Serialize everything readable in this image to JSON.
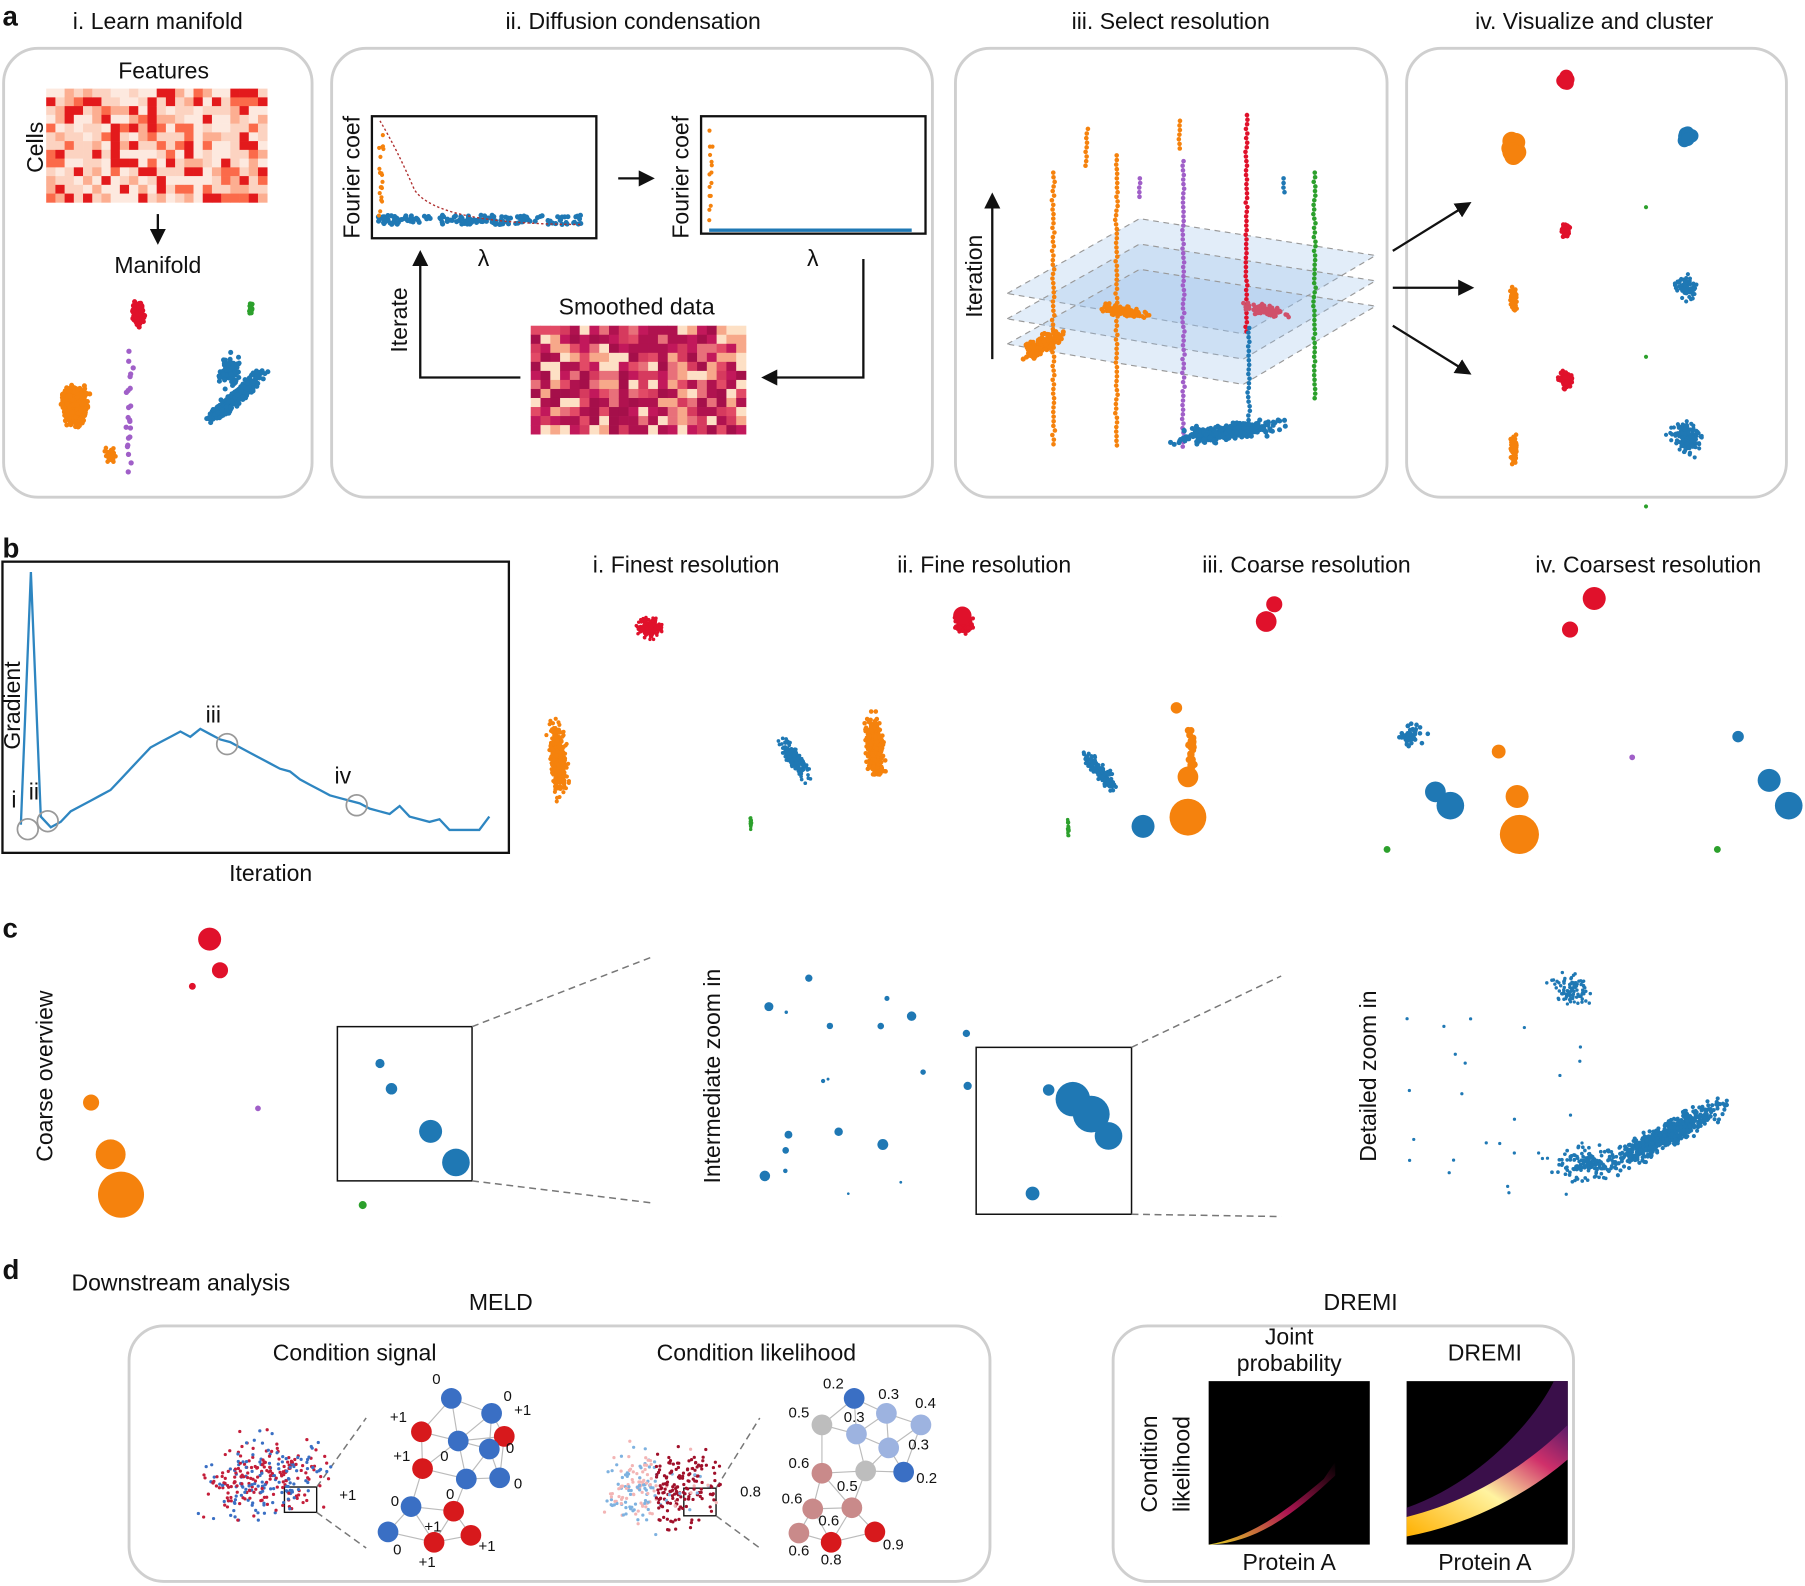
{
  "panel_a": {
    "letter": "a",
    "titles": [
      "i. Learn manifold",
      "ii. Diffusion condensation",
      "iii. Select resolution",
      "iv. Visualize and cluster"
    ],
    "features": "Features",
    "cells": "Cells",
    "manifold": "Manifold",
    "fourier_coef": "Fourier coef",
    "lambda": "λ",
    "iterate": "Iterate",
    "smoothed_data": "Smoothed data",
    "iteration": "Iteration"
  },
  "panel_b": {
    "letter": "b",
    "curve": {
      "type": "line",
      "color": "#2e86c1",
      "ylabel": "Gradient",
      "xlabel": "Iteration",
      "values": [
        5,
        100,
        8,
        4,
        6,
        10,
        12,
        14,
        16,
        18,
        22,
        26,
        30,
        34,
        36,
        38,
        40,
        38,
        41,
        39,
        37,
        36,
        34,
        32,
        30,
        28,
        26,
        25,
        22,
        20,
        18,
        16,
        15,
        14,
        13,
        11,
        10,
        9,
        12,
        8,
        7,
        6,
        7,
        3,
        3,
        3,
        3,
        8
      ],
      "annotations": [
        "i",
        "ii",
        "iii",
        "iv"
      ]
    },
    "resolutions": [
      "i. Finest resolution",
      "ii. Fine resolution",
      "iii. Coarse resolution",
      "iv. Coarsest resolution"
    ]
  },
  "panel_c": {
    "letter": "c",
    "views": [
      "Coarse overview",
      "Intermediate zoom in",
      "Detailed zoom in"
    ]
  },
  "panel_d": {
    "letter": "d",
    "heading": "Downstream analysis",
    "meld": {
      "title": "MELD",
      "signal_title": "Condition signal",
      "signal_outside_label": "+1",
      "signal_nodes": [
        {
          "label": "0",
          "color": "#3a6fc4"
        },
        {
          "label": "0",
          "color": "#3a6fc4"
        },
        {
          "label": "+1",
          "color": "#d7191c"
        },
        {
          "label": "+1",
          "color": "#d7191c"
        },
        {
          "label": "0",
          "color": "#3a6fc4"
        },
        {
          "label": "0",
          "color": "#3a6fc4"
        },
        {
          "label": "+1",
          "color": "#d7191c"
        },
        {
          "label": "0",
          "color": "#3a6fc4"
        },
        {
          "label": "0",
          "color": "#3a6fc4"
        },
        {
          "label": "0",
          "color": "#3a6fc4"
        },
        {
          "label": "+1",
          "color": "#d7191c"
        },
        {
          "label": "0",
          "color": "#3a6fc4"
        },
        {
          "label": "+1",
          "color": "#d7191c"
        },
        {
          "label": "+1",
          "color": "#d7191c"
        }
      ],
      "likelihood_title": "Condition likelihood",
      "likelihood_outside_label": "0.8",
      "likelihood_nodes": [
        {
          "label": "0.2",
          "color": "#3a6fc4"
        },
        {
          "label": "0.3",
          "color": "#9db3e0"
        },
        {
          "label": "0.4",
          "color": "#9db3e0"
        },
        {
          "label": "0.5",
          "color": "#bdbdbd"
        },
        {
          "label": "0.3",
          "color": "#9db3e0"
        },
        {
          "label": "0.3",
          "color": "#9db3e0"
        },
        {
          "label": "0.6",
          "color": "#c98a8a"
        },
        {
          "label": "0.5",
          "color": "#bdbdbd"
        },
        {
          "label": "0.2",
          "color": "#3a6fc4"
        },
        {
          "label": "0.6",
          "color": "#c98a8a"
        },
        {
          "label": "0.6",
          "color": "#c98a8a"
        },
        {
          "label": "0.6",
          "color": "#c98a8a"
        },
        {
          "label": "0.8",
          "color": "#d7191c"
        },
        {
          "label": "0.9",
          "color": "#d7191c"
        }
      ]
    },
    "dremi": {
      "title": "DREMI",
      "joint_lines": [
        "Joint",
        "probability"
      ],
      "dremi_label": "DREMI",
      "ylabel_lines": [
        "Condition",
        "likelihood"
      ],
      "xlabel": "Protein A"
    }
  }
}
